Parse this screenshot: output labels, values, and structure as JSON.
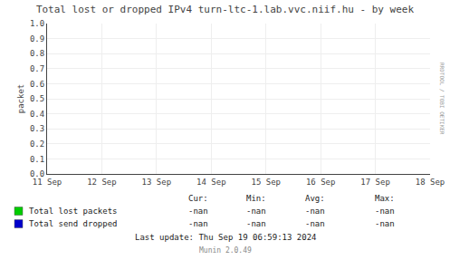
{
  "chart_data": {
    "type": "line",
    "title": "Total lost or dropped IPv4 turn-ltc-1.lab.vvc.niif.hu - by week",
    "y_label": "packet",
    "categories": [
      "11 Sep",
      "12 Sep",
      "13 Sep",
      "14 Sep",
      "15 Sep",
      "16 Sep",
      "17 Sep",
      "18 Sep"
    ],
    "series": [
      {
        "name": "Total lost packets",
        "color": "#00cc00",
        "values": [
          null,
          null,
          null,
          null,
          null,
          null,
          null,
          null
        ],
        "stats": [
          "-nan",
          "-nan",
          "-nan",
          "-nan"
        ]
      },
      {
        "name": "Total send dropped",
        "color": "#0000cc",
        "values": [
          null,
          null,
          null,
          null,
          null,
          null,
          null,
          null
        ],
        "stats": [
          "-nan",
          "-nan",
          "-nan",
          "-nan"
        ]
      }
    ],
    "stats_columns": [
      "Cur:",
      "Min:",
      "Avg:",
      "Max:"
    ],
    "annotations": [
      "Last update: Thu Sep 19 06:59:13 2024",
      "Munin 2.0.49",
      "RRDTOOL / TOBI OETIKER"
    ],
    "ylim": [
      0.0,
      1.0
    ],
    "yticks": [
      {
        "value": 0.0,
        "label": "0.0"
      },
      0.1,
      0.2,
      0.3,
      0.4,
      0.5,
      0.6,
      0.7,
      0.8,
      0.9,
      {
        "value": 1.0,
        "label": "1.0"
      }
    ],
    "grid": true
  }
}
